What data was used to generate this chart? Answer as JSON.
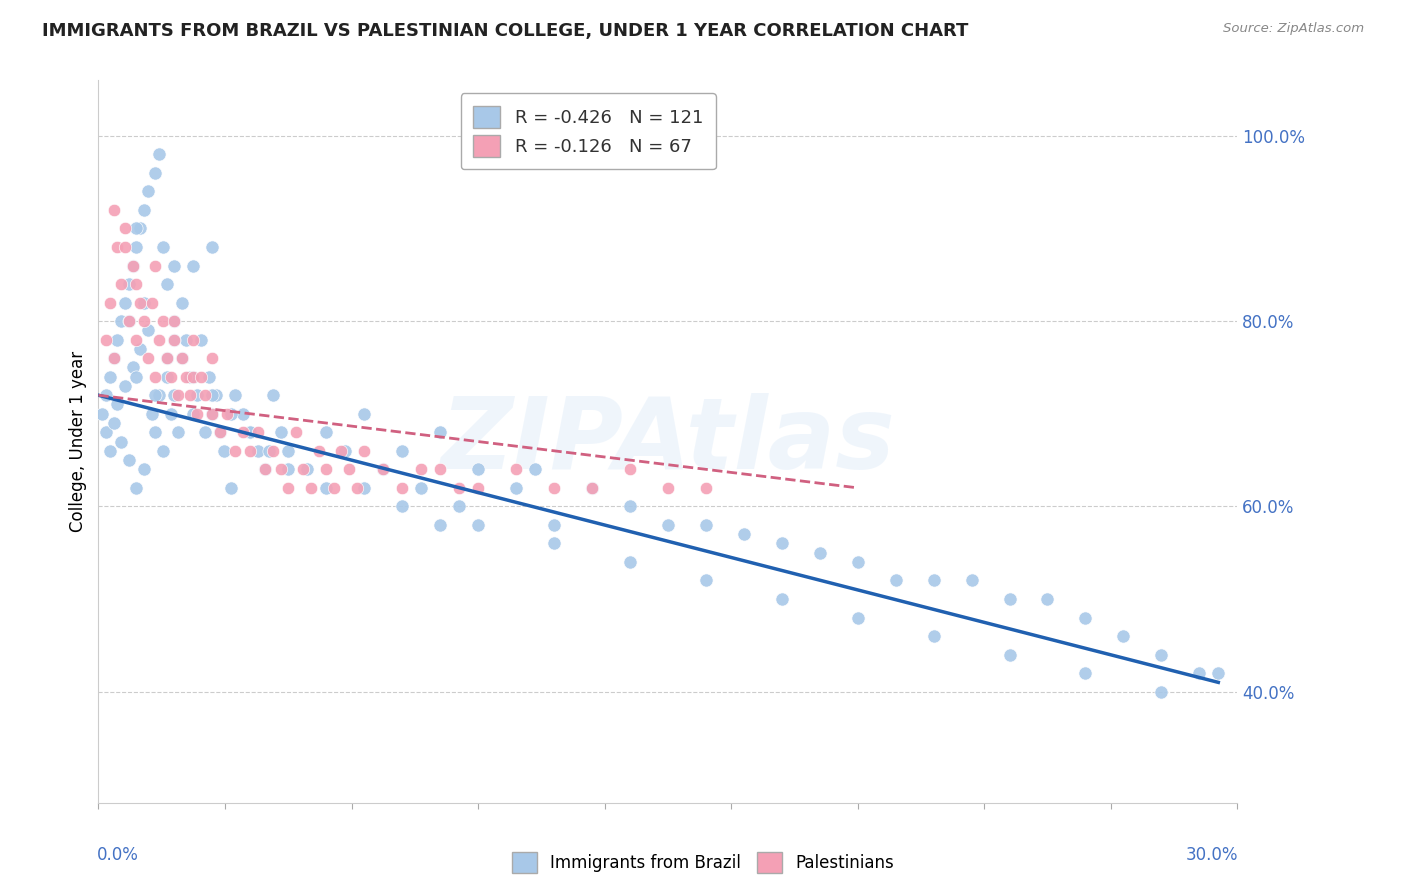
{
  "title": "IMMIGRANTS FROM BRAZIL VS PALESTINIAN COLLEGE, UNDER 1 YEAR CORRELATION CHART",
  "source": "Source: ZipAtlas.com",
  "ylabel": "College, Under 1 year",
  "xlim": [
    0.0,
    0.3
  ],
  "ylim": [
    0.28,
    1.06
  ],
  "legend1_R": "-0.426",
  "legend1_N": "121",
  "legend2_R": "-0.126",
  "legend2_N": "67",
  "brazil_color": "#A8C8E8",
  "palestine_color": "#F4A0B5",
  "brazil_line_color": "#2060B0",
  "palestine_line_color": "#D06080",
  "watermark": "ZIPAtlas",
  "background_color": "#FFFFFF",
  "grid_color": "#CCCCCC",
  "brazil_x": [
    0.001,
    0.002,
    0.002,
    0.003,
    0.003,
    0.004,
    0.004,
    0.005,
    0.005,
    0.006,
    0.006,
    0.007,
    0.007,
    0.008,
    0.008,
    0.009,
    0.009,
    0.01,
    0.01,
    0.011,
    0.011,
    0.012,
    0.012,
    0.013,
    0.013,
    0.014,
    0.015,
    0.015,
    0.016,
    0.016,
    0.017,
    0.017,
    0.018,
    0.018,
    0.019,
    0.02,
    0.02,
    0.021,
    0.022,
    0.022,
    0.023,
    0.024,
    0.025,
    0.025,
    0.026,
    0.027,
    0.028,
    0.029,
    0.03,
    0.031,
    0.032,
    0.033,
    0.035,
    0.036,
    0.038,
    0.04,
    0.042,
    0.044,
    0.046,
    0.048,
    0.05,
    0.055,
    0.06,
    0.065,
    0.07,
    0.075,
    0.08,
    0.085,
    0.09,
    0.095,
    0.1,
    0.11,
    0.115,
    0.12,
    0.13,
    0.14,
    0.15,
    0.16,
    0.17,
    0.18,
    0.19,
    0.2,
    0.21,
    0.22,
    0.23,
    0.24,
    0.25,
    0.26,
    0.27,
    0.28,
    0.29,
    0.008,
    0.01,
    0.012,
    0.015,
    0.018,
    0.02,
    0.025,
    0.03,
    0.035,
    0.04,
    0.045,
    0.05,
    0.06,
    0.07,
    0.08,
    0.09,
    0.1,
    0.12,
    0.14,
    0.16,
    0.18,
    0.2,
    0.22,
    0.24,
    0.26,
    0.28,
    0.01,
    0.02,
    0.03,
    0.295
  ],
  "brazil_y": [
    0.7,
    0.68,
    0.72,
    0.66,
    0.74,
    0.69,
    0.76,
    0.71,
    0.78,
    0.67,
    0.8,
    0.73,
    0.82,
    0.65,
    0.84,
    0.75,
    0.86,
    0.62,
    0.88,
    0.77,
    0.9,
    0.64,
    0.92,
    0.79,
    0.94,
    0.7,
    0.68,
    0.96,
    0.72,
    0.98,
    0.66,
    0.88,
    0.74,
    0.84,
    0.7,
    0.72,
    0.8,
    0.68,
    0.76,
    0.82,
    0.78,
    0.74,
    0.7,
    0.86,
    0.72,
    0.78,
    0.68,
    0.74,
    0.7,
    0.72,
    0.68,
    0.66,
    0.62,
    0.72,
    0.7,
    0.68,
    0.66,
    0.64,
    0.72,
    0.68,
    0.66,
    0.64,
    0.68,
    0.66,
    0.7,
    0.64,
    0.66,
    0.62,
    0.68,
    0.6,
    0.64,
    0.62,
    0.64,
    0.58,
    0.62,
    0.6,
    0.58,
    0.58,
    0.57,
    0.56,
    0.55,
    0.54,
    0.52,
    0.52,
    0.52,
    0.5,
    0.5,
    0.48,
    0.46,
    0.44,
    0.42,
    0.8,
    0.74,
    0.82,
    0.72,
    0.76,
    0.78,
    0.74,
    0.72,
    0.7,
    0.68,
    0.66,
    0.64,
    0.62,
    0.62,
    0.6,
    0.58,
    0.58,
    0.56,
    0.54,
    0.52,
    0.5,
    0.48,
    0.46,
    0.44,
    0.42,
    0.4,
    0.9,
    0.86,
    0.88,
    0.42
  ],
  "palestine_x": [
    0.002,
    0.003,
    0.004,
    0.005,
    0.006,
    0.007,
    0.008,
    0.009,
    0.01,
    0.011,
    0.012,
    0.013,
    0.014,
    0.015,
    0.016,
    0.017,
    0.018,
    0.019,
    0.02,
    0.021,
    0.022,
    0.023,
    0.024,
    0.025,
    0.026,
    0.027,
    0.028,
    0.03,
    0.032,
    0.034,
    0.036,
    0.038,
    0.04,
    0.042,
    0.044,
    0.046,
    0.048,
    0.05,
    0.052,
    0.054,
    0.056,
    0.058,
    0.06,
    0.062,
    0.064,
    0.066,
    0.068,
    0.07,
    0.075,
    0.08,
    0.085,
    0.09,
    0.095,
    0.1,
    0.11,
    0.12,
    0.13,
    0.14,
    0.15,
    0.16,
    0.004,
    0.007,
    0.01,
    0.015,
    0.02,
    0.025,
    0.03
  ],
  "palestine_y": [
    0.78,
    0.82,
    0.76,
    0.88,
    0.84,
    0.9,
    0.8,
    0.86,
    0.78,
    0.82,
    0.8,
    0.76,
    0.82,
    0.74,
    0.78,
    0.8,
    0.76,
    0.74,
    0.78,
    0.72,
    0.76,
    0.74,
    0.72,
    0.74,
    0.7,
    0.74,
    0.72,
    0.7,
    0.68,
    0.7,
    0.66,
    0.68,
    0.66,
    0.68,
    0.64,
    0.66,
    0.64,
    0.62,
    0.68,
    0.64,
    0.62,
    0.66,
    0.64,
    0.62,
    0.66,
    0.64,
    0.62,
    0.66,
    0.64,
    0.62,
    0.64,
    0.64,
    0.62,
    0.62,
    0.64,
    0.62,
    0.62,
    0.64,
    0.62,
    0.62,
    0.92,
    0.88,
    0.84,
    0.86,
    0.8,
    0.78,
    0.76
  ]
}
